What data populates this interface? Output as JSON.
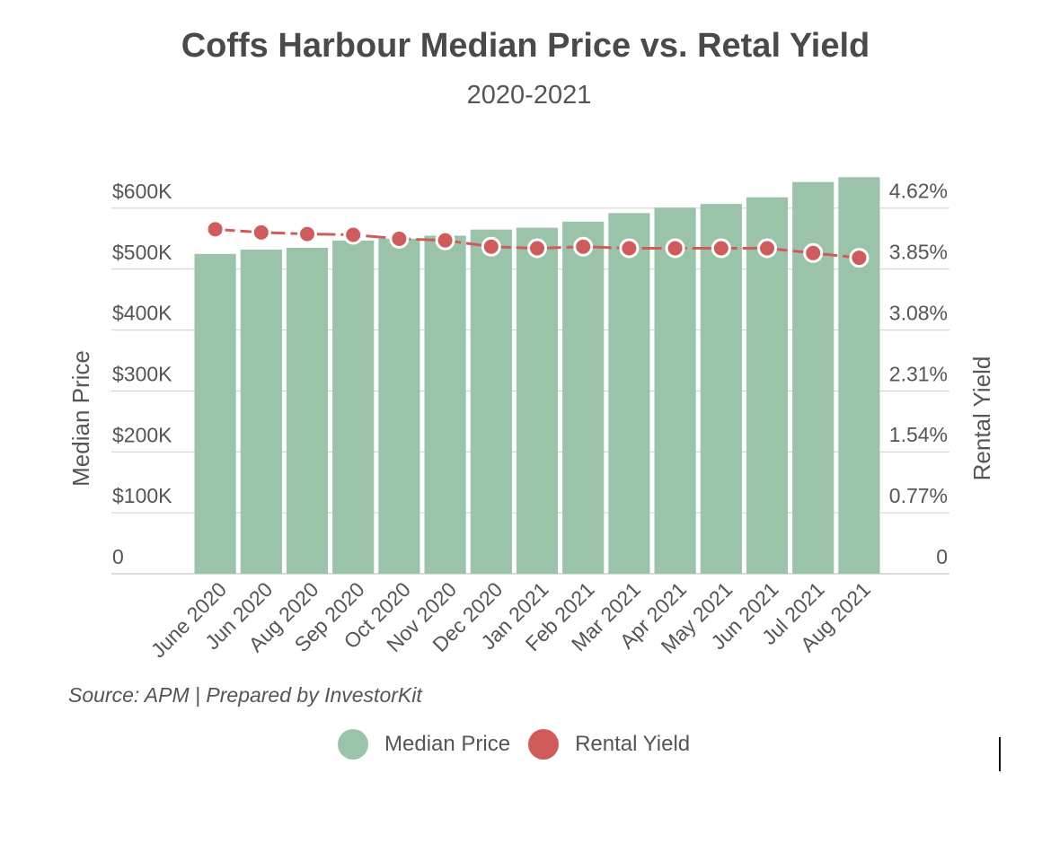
{
  "title": "Coffs Harbour Median Price vs. Retal Yield",
  "subtitle": "2020-2021",
  "source": "Source: APM | Prepared by InvestorKit",
  "colors": {
    "bar": "#9bc3aa",
    "line": "#d05b5b",
    "grid": "#cfcfcf",
    "axis_text": "#555555"
  },
  "legend": [
    {
      "label": "Median Price",
      "color": "#9bc3aa",
      "icon": "circle-icon"
    },
    {
      "label": "Rental Yield",
      "color": "#d05b5b",
      "icon": "circle-icon"
    }
  ],
  "chart_data": {
    "type": "bar",
    "title": "Coffs Harbour Median Price vs. Retal Yield",
    "subtitle": "2020-2021",
    "categories": [
      "June 2020",
      "Jun 2020",
      "Aug 2020",
      "Sep 2020",
      "Oct 2020",
      "Nov 2020",
      "Dec 2020",
      "Jan 2021",
      "Feb 2021",
      "Mar 2021",
      "Apr 2021",
      "May 2021",
      "Jun 2021",
      "Jul 2021",
      "Aug 2021"
    ],
    "series": [
      {
        "name": "Median Price",
        "type": "bar",
        "axis": "left",
        "values": [
          525000,
          532000,
          535000,
          547000,
          550000,
          555000,
          565000,
          568000,
          578000,
          592000,
          601000,
          607000,
          618000,
          643000,
          651000
        ]
      },
      {
        "name": "Rental Yield",
        "type": "line",
        "axis": "right",
        "values": [
          4.35,
          4.31,
          4.29,
          4.28,
          4.23,
          4.21,
          4.13,
          4.11,
          4.13,
          4.11,
          4.11,
          4.11,
          4.11,
          4.05,
          3.99
        ]
      }
    ],
    "ylabel": "Median Price",
    "ylabel_right": "Rental Yield",
    "ylim": [
      0,
      650000
    ],
    "ylim_right": [
      0,
      5.0
    ],
    "yticks": [
      {
        "value": 0,
        "label": "0"
      },
      {
        "value": 100000,
        "label": "$100K"
      },
      {
        "value": 200000,
        "label": "$200K"
      },
      {
        "value": 300000,
        "label": "$300K"
      },
      {
        "value": 400000,
        "label": "$400K"
      },
      {
        "value": 500000,
        "label": "$500K"
      },
      {
        "value": 600000,
        "label": "$600K"
      }
    ],
    "yticks_right": [
      {
        "value": 0,
        "label": "0"
      },
      {
        "value": 0.77,
        "label": "0.77%"
      },
      {
        "value": 1.54,
        "label": "1.54%"
      },
      {
        "value": 2.31,
        "label": "2.31%"
      },
      {
        "value": 3.08,
        "label": "3.08%"
      },
      {
        "value": 3.85,
        "label": "3.85%"
      },
      {
        "value": 4.62,
        "label": "4.62%"
      }
    ],
    "grid": true,
    "legend_position": "bottom-center"
  }
}
